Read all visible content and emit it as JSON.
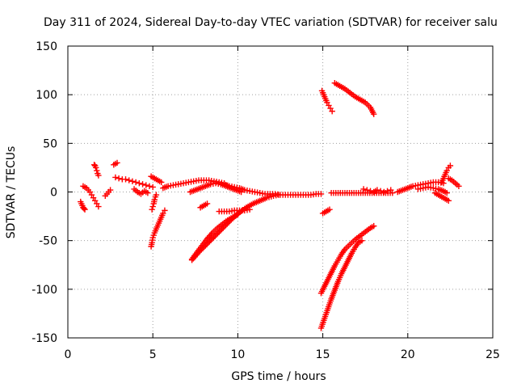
{
  "chart_data": {
    "type": "scatter",
    "title": "Day 311 of 2024, Sidereal Day-to-day VTEC variation (SDTVAR) for receiver salu",
    "xlabel": "GPS time / hours",
    "ylabel": "SDTVAR / TECUs",
    "xlim": [
      0,
      25
    ],
    "ylim": [
      -150,
      150
    ],
    "x_ticks": [
      0,
      5,
      10,
      15,
      20,
      25
    ],
    "x_tick_labels": [
      "0",
      "5",
      "10",
      "15",
      "20",
      "25"
    ],
    "y_ticks": [
      -150,
      -100,
      -50,
      0,
      50,
      100,
      150
    ],
    "y_tick_labels": [
      "-150",
      "-100",
      "-50",
      "0",
      "50",
      "100",
      "150"
    ],
    "grid": true,
    "legend": "none",
    "series": [
      {
        "color": "#ff0000",
        "marker": "plus",
        "segments": [
          {
            "x": [
              0.75,
              0.8,
              0.85,
              0.9,
              0.95,
              1.0
            ],
            "y": [
              -10,
              -12,
              -14,
              -16,
              -17,
              -18
            ]
          },
          {
            "x": [
              0.9,
              1.0,
              1.1,
              1.2,
              1.3,
              1.4,
              1.5,
              1.6,
              1.7,
              1.8
            ],
            "y": [
              6,
              5,
              4,
              2,
              0,
              -3,
              -6,
              -9,
              -12,
              -15
            ]
          },
          {
            "x": [
              1.55,
              1.6,
              1.65,
              1.7,
              1.75,
              1.8
            ],
            "y": [
              28,
              27,
              25,
              22,
              19,
              17
            ]
          },
          {
            "x": [
              2.2,
              2.3,
              2.4,
              2.5
            ],
            "y": [
              -4,
              -2,
              0,
              2
            ]
          },
          {
            "x": [
              2.7,
              2.8,
              2.9
            ],
            "y": [
              28,
              29,
              30
            ]
          },
          {
            "x": [
              2.8,
              3.0,
              3.2,
              3.4,
              3.6,
              3.8,
              4.0,
              4.2,
              4.4,
              4.6,
              4.8,
              5.0
            ],
            "y": [
              15,
              14,
              13,
              13,
              12,
              11,
              10,
              9,
              8,
              7,
              6,
              5
            ]
          },
          {
            "x": [
              3.9,
              4.1,
              4.3,
              4.5,
              4.7
            ],
            "y": [
              3,
              0,
              -2,
              1,
              -1
            ]
          },
          {
            "x": [
              4.9,
              5.0,
              5.1,
              5.2,
              5.3,
              5.4,
              5.5
            ],
            "y": [
              16,
              15,
              14,
              13,
              12,
              11,
              10
            ]
          },
          {
            "x": [
              5.6,
              5.9,
              6.2,
              6.5,
              6.8,
              7.1,
              7.4,
              7.7,
              8.0,
              8.3,
              8.6,
              8.9,
              9.2
            ],
            "y": [
              4,
              6,
              7,
              8,
              9,
              10,
              11,
              12,
              12,
              12,
              11,
              10,
              9
            ]
          },
          {
            "x": [
              9.2,
              9.5,
              9.8,
              10.1,
              10.4,
              10.7,
              11.0,
              11.3,
              11.6,
              11.9,
              12.2,
              12.5,
              12.8,
              13.1,
              13.4,
              13.7,
              14.0,
              14.3,
              14.6,
              14.9
            ],
            "y": [
              8,
              6,
              5,
              4,
              2,
              1,
              0,
              -1,
              -2,
              -2,
              -2,
              -3,
              -3,
              -3,
              -3,
              -3,
              -3,
              -3,
              -2,
              -2
            ]
          },
          {
            "x": [
              4.9,
              4.95,
              5.0,
              5.1,
              5.2,
              5.3,
              5.4,
              5.5,
              5.6,
              5.7
            ],
            "y": [
              -56,
              -52,
              -47,
              -42,
              -38,
              -34,
              -30,
              -26,
              -22,
              -19
            ]
          },
          {
            "x": [
              4.95,
              5.0,
              5.05,
              5.1,
              5.15,
              5.2
            ],
            "y": [
              -18,
              -15,
              -12,
              -8,
              -5,
              -3
            ]
          },
          {
            "x": [
              7.2,
              7.5,
              7.8,
              8.1,
              8.4,
              8.7,
              9.0,
              9.3,
              9.6,
              9.9,
              10.2
            ],
            "y": [
              0,
              2,
              4,
              6,
              8,
              9,
              8,
              6,
              4,
              2,
              0
            ]
          },
          {
            "x": [
              7.3,
              7.6,
              7.9,
              8.2,
              8.5,
              8.8,
              9.1,
              9.4,
              9.7,
              10.0
            ],
            "y": [
              -69,
              -62,
              -55,
              -48,
              -42,
              -37,
              -33,
              -29,
              -26,
              -23
            ]
          },
          {
            "x": [
              7.3,
              7.7,
              8.1,
              8.5,
              8.9,
              9.3,
              9.7,
              10.1,
              10.5,
              10.9,
              11.3,
              11.7,
              12.1,
              12.4
            ],
            "y": [
              -70,
              -62,
              -55,
              -48,
              -41,
              -34,
              -27,
              -21,
              -16,
              -12,
              -9,
              -6,
              -4,
              -3
            ]
          },
          {
            "x": [
              7.8,
              8.0,
              8.2
            ],
            "y": [
              -16,
              -14,
              -12
            ]
          },
          {
            "x": [
              8.9,
              9.2,
              9.5,
              9.8,
              10.1,
              10.4,
              10.7
            ],
            "y": [
              -20,
              -20,
              -20,
              -19,
              -19,
              -19,
              -18
            ]
          },
          {
            "x": [
              14.95,
              15.05,
              15.15,
              15.25,
              15.35,
              15.45,
              15.55
            ],
            "y": [
              104,
              100,
              96,
              92,
              89,
              86,
              83
            ]
          },
          {
            "x": [
              15.7,
              16.0,
              16.3,
              16.6,
              16.9,
              17.2,
              17.5,
              17.8,
              18.0
            ],
            "y": [
              112,
              109,
              106,
              102,
              98,
              95,
              92,
              87,
              80
            ]
          },
          {
            "x": [
              15.0,
              15.2,
              15.4
            ],
            "y": [
              -22,
              -20,
              -18
            ]
          },
          {
            "x": [
              14.9,
              15.1,
              15.3,
              15.5,
              15.7,
              15.9,
              16.1,
              16.3,
              16.6,
              16.9,
              17.2,
              17.5,
              17.8,
              18.0
            ],
            "y": [
              -104,
              -97,
              -90,
              -83,
              -76,
              -70,
              -64,
              -59,
              -54,
              -49,
              -45,
              -41,
              -37,
              -35
            ]
          },
          {
            "x": [
              14.9,
              15.1,
              15.3,
              15.5,
              15.7,
              15.9,
              16.1,
              16.3,
              16.5,
              16.7,
              16.9,
              17.1,
              17.3
            ],
            "y": [
              -140,
              -130,
              -120,
              -110,
              -101,
              -92,
              -84,
              -77,
              -70,
              -63,
              -57,
              -52,
              -50
            ]
          },
          {
            "x": [
              15.5,
              15.9,
              16.3,
              16.7,
              17.1,
              17.5,
              17.9,
              18.3,
              18.7,
              19.1
            ],
            "y": [
              -1,
              -1,
              -1,
              -1,
              -1,
              -1,
              -1,
              -1,
              -1,
              -1
            ]
          },
          {
            "x": [
              17.4,
              17.6,
              17.8,
              18.0,
              18.2,
              18.4,
              18.6,
              18.8,
              19.0
            ],
            "y": [
              3,
              2,
              1,
              0,
              2,
              1,
              0,
              1,
              2
            ]
          },
          {
            "x": [
              19.4,
              19.7,
              20.0,
              20.3,
              20.6,
              20.9,
              21.2,
              21.5,
              21.8,
              22.1
            ],
            "y": [
              0,
              2,
              4,
              6,
              7,
              8,
              9,
              10,
              10,
              9
            ]
          },
          {
            "x": [
              20.6,
              20.9,
              21.2,
              21.5,
              21.8,
              22.1,
              22.3
            ],
            "y": [
              3,
              4,
              5,
              4,
              3,
              1,
              -1
            ]
          },
          {
            "x": [
              21.6,
              21.8,
              22.0,
              22.2,
              22.4
            ],
            "y": [
              -1,
              -3,
              -5,
              -7,
              -9
            ]
          },
          {
            "x": [
              22.0,
              22.1,
              22.2,
              22.3,
              22.4,
              22.5
            ],
            "y": [
              10,
              14,
              18,
              22,
              25,
              27
            ]
          },
          {
            "x": [
              22.4,
              22.6,
              22.8,
              23.0
            ],
            "y": [
              14,
              12,
              9,
              6
            ]
          }
        ]
      }
    ]
  }
}
